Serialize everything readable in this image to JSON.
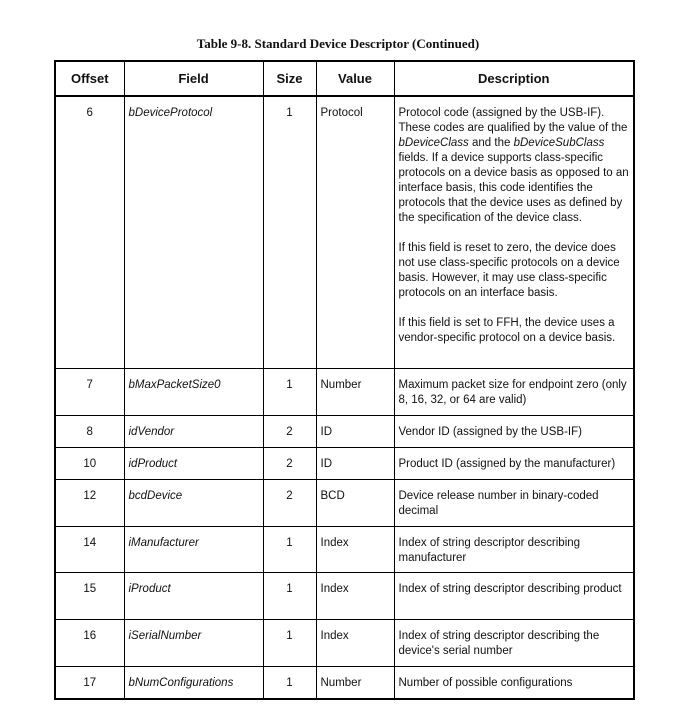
{
  "title": "Table 9-8.  Standard Device Descriptor (Continued)",
  "columns": [
    "Offset",
    "Field",
    "Size",
    "Value",
    "Description"
  ],
  "rows": [
    {
      "offset": "6",
      "field": "bDeviceProtocol",
      "size": "1",
      "value": "Protocol",
      "p1a": "Protocol code (assigned by the USB-IF). These codes are qualified by the value of the ",
      "p1b": "bDeviceClass",
      "p1c": " and the ",
      "p1d": "bDeviceSubClass",
      "p1e": " fields.  If a device supports class-specific protocols on a device basis as opposed to an interface basis, this code identifies the protocols that the device uses as defined by the specification of the device class.",
      "p2": "If this field is reset to zero, the device does not use class-specific protocols on a device basis.  However, it may use class-specific protocols on an interface basis.",
      "p3": "If this field is set to FFH, the device uses a vendor-specific protocol on a device basis."
    },
    {
      "offset": "7",
      "field": "bMaxPacketSize0",
      "size": "1",
      "value": "Number",
      "description": "Maximum packet size for endpoint zero (only 8, 16, 32, or 64 are valid)"
    },
    {
      "offset": "8",
      "field": "idVendor",
      "size": "2",
      "value": "ID",
      "description": "Vendor ID (assigned by the USB-IF)"
    },
    {
      "offset": "10",
      "field": "idProduct",
      "size": "2",
      "value": "ID",
      "description": "Product ID (assigned by the manufacturer)"
    },
    {
      "offset": "12",
      "field": "bcdDevice",
      "size": "2",
      "value": "BCD",
      "description": "Device release number in binary-coded decimal"
    },
    {
      "offset": "14",
      "field": "iManufacturer",
      "size": "1",
      "value": "Index",
      "description": "Index of string descriptor describing manufacturer"
    },
    {
      "offset": "15",
      "field": "iProduct",
      "size": "1",
      "value": "Index",
      "description": "Index of string descriptor describing product"
    },
    {
      "offset": "16",
      "field": "iSerialNumber",
      "size": "1",
      "value": "Index",
      "description": "Index of string descriptor describing the device's serial number"
    },
    {
      "offset": "17",
      "field": "bNumConfigurations",
      "size": "1",
      "value": "Number",
      "description": "Number of possible configurations"
    }
  ]
}
